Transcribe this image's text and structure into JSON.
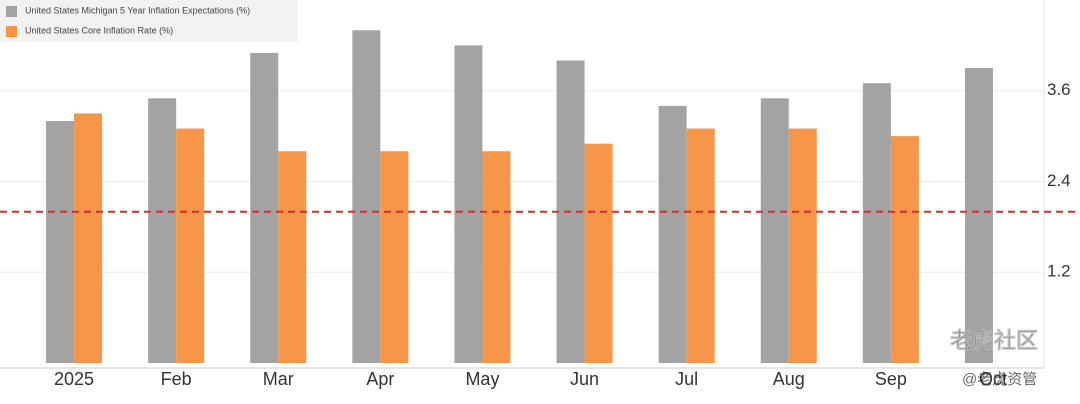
{
  "chart_data": {
    "type": "bar",
    "categories": [
      "2025",
      "Feb",
      "Mar",
      "Apr",
      "May",
      "Jun",
      "Jul",
      "Aug",
      "Sep",
      "Oct"
    ],
    "series": [
      {
        "name": "United States Michigan 5 Year Inflation Expectations (%)",
        "color": "#a3a3a3",
        "values": [
          3.2,
          3.5,
          4.1,
          4.4,
          4.2,
          4.0,
          3.4,
          3.5,
          3.7,
          3.9
        ]
      },
      {
        "name": "United States Core Inflation Rate (%)",
        "color": "#f5964a",
        "values": [
          3.3,
          3.1,
          2.8,
          2.8,
          2.8,
          2.9,
          3.1,
          3.1,
          3.0,
          null
        ]
      }
    ],
    "ylim": [
      0,
      4.8
    ],
    "yticks": [
      1.2,
      2.4,
      3.6
    ],
    "grid": true,
    "reference_line": {
      "value": 2.0,
      "color": "#d0312d"
    },
    "legend": "top-left",
    "watermark": [
      "老虎社区",
      "@老虎资管"
    ]
  }
}
